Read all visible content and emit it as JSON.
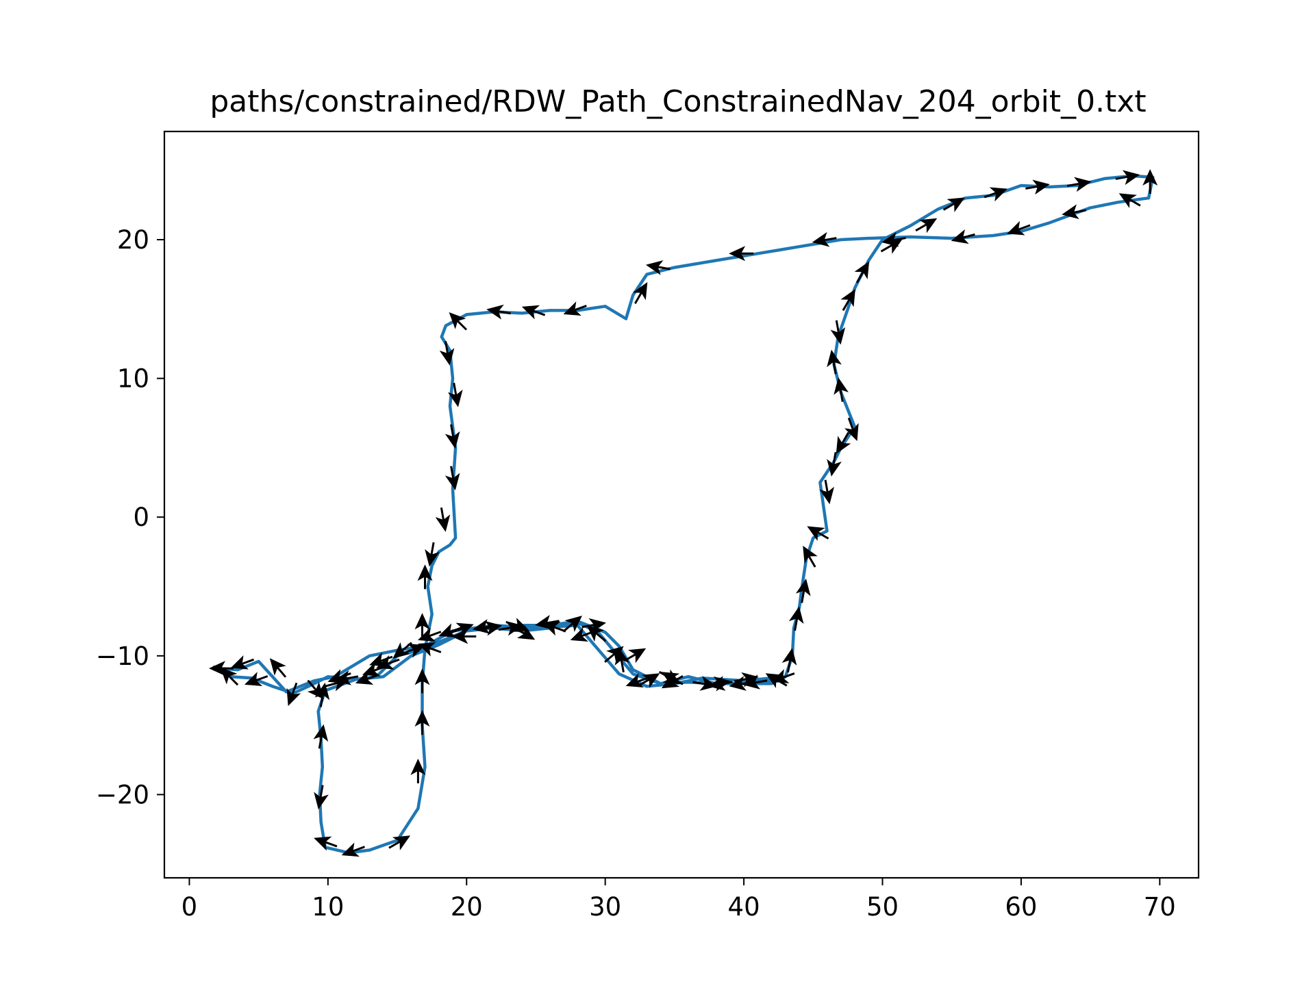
{
  "chart_data": {
    "type": "line",
    "title": "paths/constrained/RDW_Path_ConstrainedNav_204_orbit_0.txt",
    "xlabel": "",
    "ylabel": "",
    "xlim": [
      -1.8,
      72.8
    ],
    "ylim": [
      -26.0,
      27.8
    ],
    "xticks": [
      0,
      10,
      20,
      30,
      40,
      50,
      60,
      70
    ],
    "yticks": [
      -20,
      -10,
      0,
      10,
      20
    ],
    "xtick_labels": [
      "0",
      "10",
      "20",
      "30",
      "40",
      "50",
      "60",
      "70"
    ],
    "ytick_labels": [
      "−20",
      "−10",
      "0",
      "10",
      "20"
    ],
    "grid": false,
    "legend": "none",
    "line_color": "#1f77b4",
    "arrow_color": "#000000",
    "path": {
      "x": [
        1.8,
        3.0,
        4.5,
        6.0,
        7.5,
        9.0,
        10.0,
        12.0,
        13.5,
        15.0,
        16.5,
        18.0,
        20.0,
        22.0,
        24.0,
        26.0,
        28.0,
        29.5,
        30.5,
        32.0,
        34.0,
        36.0,
        38.0,
        40.0,
        42.0,
        43.0,
        43.5,
        43.6,
        44.0,
        44.2,
        44.5,
        45.0,
        46.0,
        45.5,
        46.5,
        47.0,
        48.0,
        47.0,
        46.5,
        46.8,
        47.5,
        48.0,
        49.0,
        50.0,
        52.0,
        54.0,
        56.0,
        58.0,
        60.0,
        62.0,
        64.0,
        66.0,
        68.0,
        69.5,
        69.2,
        67.0,
        65.0,
        62.0,
        60.0,
        58.0,
        55.0,
        52.0,
        49.0,
        47.0,
        44.0,
        41.0,
        38.0,
        35.0,
        33.0,
        32.0,
        31.5,
        30.0,
        28.0,
        26.0,
        24.0,
        22.0,
        20.0,
        18.5,
        18.2,
        18.8,
        19.0,
        18.8,
        19.2,
        19.0,
        19.2,
        18.8,
        18.0,
        17.5,
        17.2,
        17.5,
        17.0,
        16.8,
        16.8,
        17.0,
        16.5,
        15.0,
        13.0,
        11.5,
        9.8,
        9.5,
        9.4,
        9.6,
        9.5,
        9.3,
        9.8,
        12.0,
        14.0,
        16.0,
        18.0,
        20.0,
        22.0,
        24.0,
        26.0,
        28.0,
        30.0,
        31.0,
        32.0,
        34.0,
        36.0,
        38.0,
        40.0,
        42.0,
        43.0,
        40.0,
        37.0,
        35.0,
        33.0,
        31.0,
        28.0,
        25.0,
        22.0,
        19.0,
        17.0,
        15.0,
        13.0,
        10.5,
        9.0,
        7.0,
        5.0,
        3.5,
        2.0
      ],
      "y": [
        -10.8,
        -11.5,
        -11.6,
        -12.2,
        -12.7,
        -12.0,
        -11.5,
        -11.7,
        -11.5,
        -10.0,
        -9.6,
        -9.0,
        -8.2,
        -8.0,
        -8.2,
        -8.0,
        -7.6,
        -8.3,
        -9.5,
        -11.3,
        -12.0,
        -11.5,
        -12.0,
        -12.0,
        -11.8,
        -11.5,
        -10.0,
        -8.0,
        -6.5,
        -5.0,
        -3.0,
        -1.5,
        -1.0,
        2.5,
        4.0,
        5.0,
        6.5,
        9.0,
        11.0,
        13.0,
        15.0,
        16.5,
        18.5,
        20.0,
        21.0,
        22.2,
        23.0,
        23.2,
        23.9,
        23.8,
        23.9,
        24.4,
        24.6,
        24.5,
        23.0,
        22.7,
        22.3,
        21.2,
        20.6,
        20.3,
        20.1,
        20.2,
        20.1,
        20.0,
        19.5,
        19.0,
        18.5,
        18.0,
        17.5,
        16.0,
        14.3,
        15.2,
        14.9,
        14.9,
        14.7,
        14.8,
        14.6,
        13.8,
        13.0,
        12.0,
        10.0,
        8.0,
        5.0,
        2.0,
        -1.5,
        -2.0,
        -2.5,
        -3.5,
        -5.0,
        -7.0,
        -9.5,
        -12.0,
        -15.0,
        -18.0,
        -21.0,
        -23.3,
        -24.0,
        -24.2,
        -23.8,
        -22.0,
        -20.0,
        -18.0,
        -16.0,
        -14.0,
        -12.5,
        -11.7,
        -11.5,
        -10.0,
        -9.2,
        -8.2,
        -8.0,
        -7.8,
        -7.8,
        -7.5,
        -8.3,
        -9.3,
        -11.0,
        -12.0,
        -11.9,
        -12.0,
        -12.0,
        -12.0,
        -11.5,
        -11.8,
        -11.6,
        -12.0,
        -12.2,
        -11.3,
        -7.8,
        -8.0,
        -7.8,
        -8.2,
        -9.3,
        -9.6,
        -10.0,
        -11.5,
        -11.8,
        -12.6,
        -10.4,
        -11.0,
        -10.9
      ]
    },
    "arrows": {
      "x": [
        3.0,
        5.0,
        7.5,
        10.5,
        13.0,
        14.5,
        16.0,
        19.0,
        21.5,
        24.0,
        27.5,
        29.5,
        31.2,
        33.0,
        35.0,
        38.0,
        40.0,
        42.5,
        43.3,
        43.8,
        44.3,
        44.8,
        45.5,
        46.0,
        46.5,
        47.2,
        47.8,
        47.0,
        46.5,
        46.8,
        47.5,
        48.5,
        50.5,
        53.0,
        55.0,
        58.0,
        61.0,
        64.0,
        67.5,
        69.3,
        68.0,
        64.0,
        60.0,
        56.0,
        51.0,
        46.0,
        40.0,
        34.0,
        32.5,
        28.0,
        25.0,
        22.5,
        19.5,
        18.6,
        19.2,
        19.0,
        19.0,
        18.3,
        17.5,
        17.0,
        16.8,
        16.8,
        16.8,
        16.5,
        15.0,
        12.0,
        10.0,
        9.5,
        9.5,
        9.6,
        11.5,
        13.5,
        15.5,
        17.5,
        19.5,
        21.5,
        23.5,
        26.0,
        28.5,
        30.5,
        32.5,
        35.0,
        38.5,
        41.0,
        43.0,
        40.0,
        37.0,
        34.5,
        32.0,
        29.0,
        26.5,
        23.0,
        20.0,
        17.5,
        14.0,
        11.0,
        9.0,
        6.5,
        4.0,
        2.5
      ],
      "y": [
        -11.6,
        -11.7,
        -12.6,
        -12.0,
        -11.6,
        -10.5,
        -9.6,
        -8.2,
        -8.0,
        -8.3,
        -7.8,
        -8.5,
        -10.5,
        -11.8,
        -11.7,
        -12.0,
        -12.0,
        -11.8,
        -10.5,
        -7.5,
        -5.5,
        -3.0,
        -1.2,
        2.0,
        4.0,
        5.5,
        6.5,
        9.0,
        11.0,
        13.5,
        15.5,
        17.5,
        19.5,
        21.0,
        22.5,
        23.3,
        23.8,
        24.0,
        24.5,
        24.0,
        22.8,
        22.0,
        20.8,
        20.2,
        20.0,
        20.0,
        19.0,
        18.0,
        16.0,
        15.0,
        14.8,
        14.8,
        14.0,
        12.0,
        9.0,
        6.0,
        3.0,
        0.0,
        -2.5,
        -4.5,
        -8.0,
        -12.0,
        -15.0,
        -18.5,
        -23.5,
        -24.0,
        -23.5,
        -20.0,
        -16.0,
        -13.0,
        -11.6,
        -11.0,
        -9.5,
        -8.5,
        -8.1,
        -7.9,
        -7.8,
        -7.6,
        -8.5,
        -10.0,
        -11.8,
        -11.8,
        -12.0,
        -11.9,
        -11.5,
        -11.7,
        -12.0,
        -11.5,
        -10.0,
        -7.8,
        -8.0,
        -8.0,
        -8.6,
        -9.5,
        -10.3,
        -11.5,
        -12.3,
        -11.0,
        -10.5,
        -10.9
      ],
      "angle_deg": [
        135,
        200,
        250,
        15,
        200,
        200,
        20,
        200,
        10,
        330,
        40,
        140,
        100,
        30,
        150,
        10,
        190,
        150,
        80,
        80,
        80,
        120,
        150,
        280,
        260,
        240,
        290,
        100,
        100,
        280,
        60,
        60,
        30,
        30,
        30,
        20,
        10,
        10,
        10,
        90,
        150,
        190,
        200,
        195,
        190,
        190,
        180,
        170,
        60,
        200,
        160,
        170,
        135,
        280,
        280,
        280,
        280,
        280,
        260,
        90,
        90,
        90,
        90,
        90,
        30,
        200,
        160,
        260,
        80,
        80,
        190,
        200,
        220,
        200,
        20,
        190,
        340,
        190,
        200,
        40,
        200,
        210,
        190,
        190,
        200,
        10,
        350,
        330,
        30,
        10,
        160,
        10,
        180,
        160,
        200,
        200,
        310,
        130,
        200,
        180
      ]
    }
  }
}
